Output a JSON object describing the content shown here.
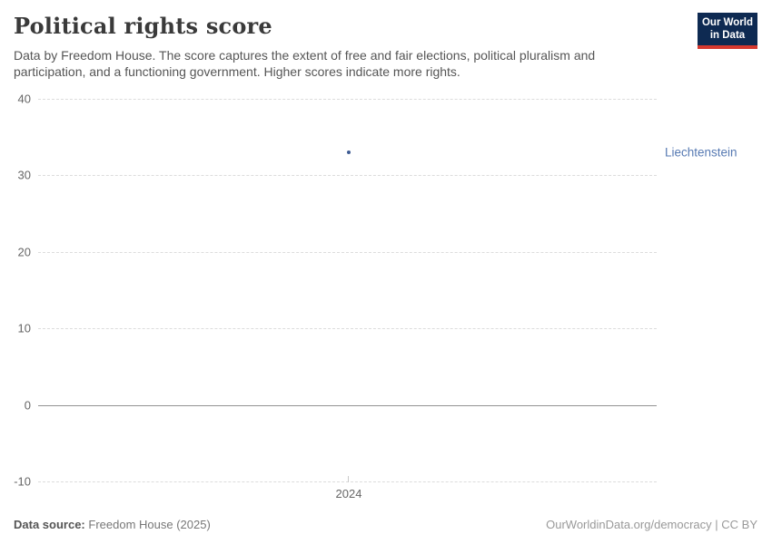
{
  "header": {
    "title": "Political rights score",
    "subtitle": "Data by Freedom House. The score captures the extent of free and fair elections, political pluralism and participation, and a functioning government. Higher scores indicate more rights.",
    "logo": {
      "line1": "Our World",
      "line2": "in Data"
    }
  },
  "colors": {
    "point": "#3f5c93",
    "entity_label": "#577ab3",
    "logo_bg": "#0e2a52",
    "logo_accent": "#d6392f"
  },
  "chart_data": {
    "type": "scatter",
    "title": "Political rights score",
    "xlabel": "",
    "ylabel": "",
    "series": [
      {
        "name": "Liechtenstein",
        "x": [
          2024
        ],
        "y": [
          33
        ]
      }
    ],
    "x_ticks": [
      "2024"
    ],
    "y_ticks": [
      40,
      30,
      20,
      10,
      0,
      -10
    ],
    "ylim": [
      -10,
      40
    ],
    "grid": "horizontal dashed, solid zero line",
    "legend_position": "right entity label",
    "entity_label": "Liechtenstein"
  },
  "footer": {
    "source_label": "Data source:",
    "source_value": "Freedom House (2025)",
    "credit": "OurWorldinData.org/democracy | CC BY"
  }
}
